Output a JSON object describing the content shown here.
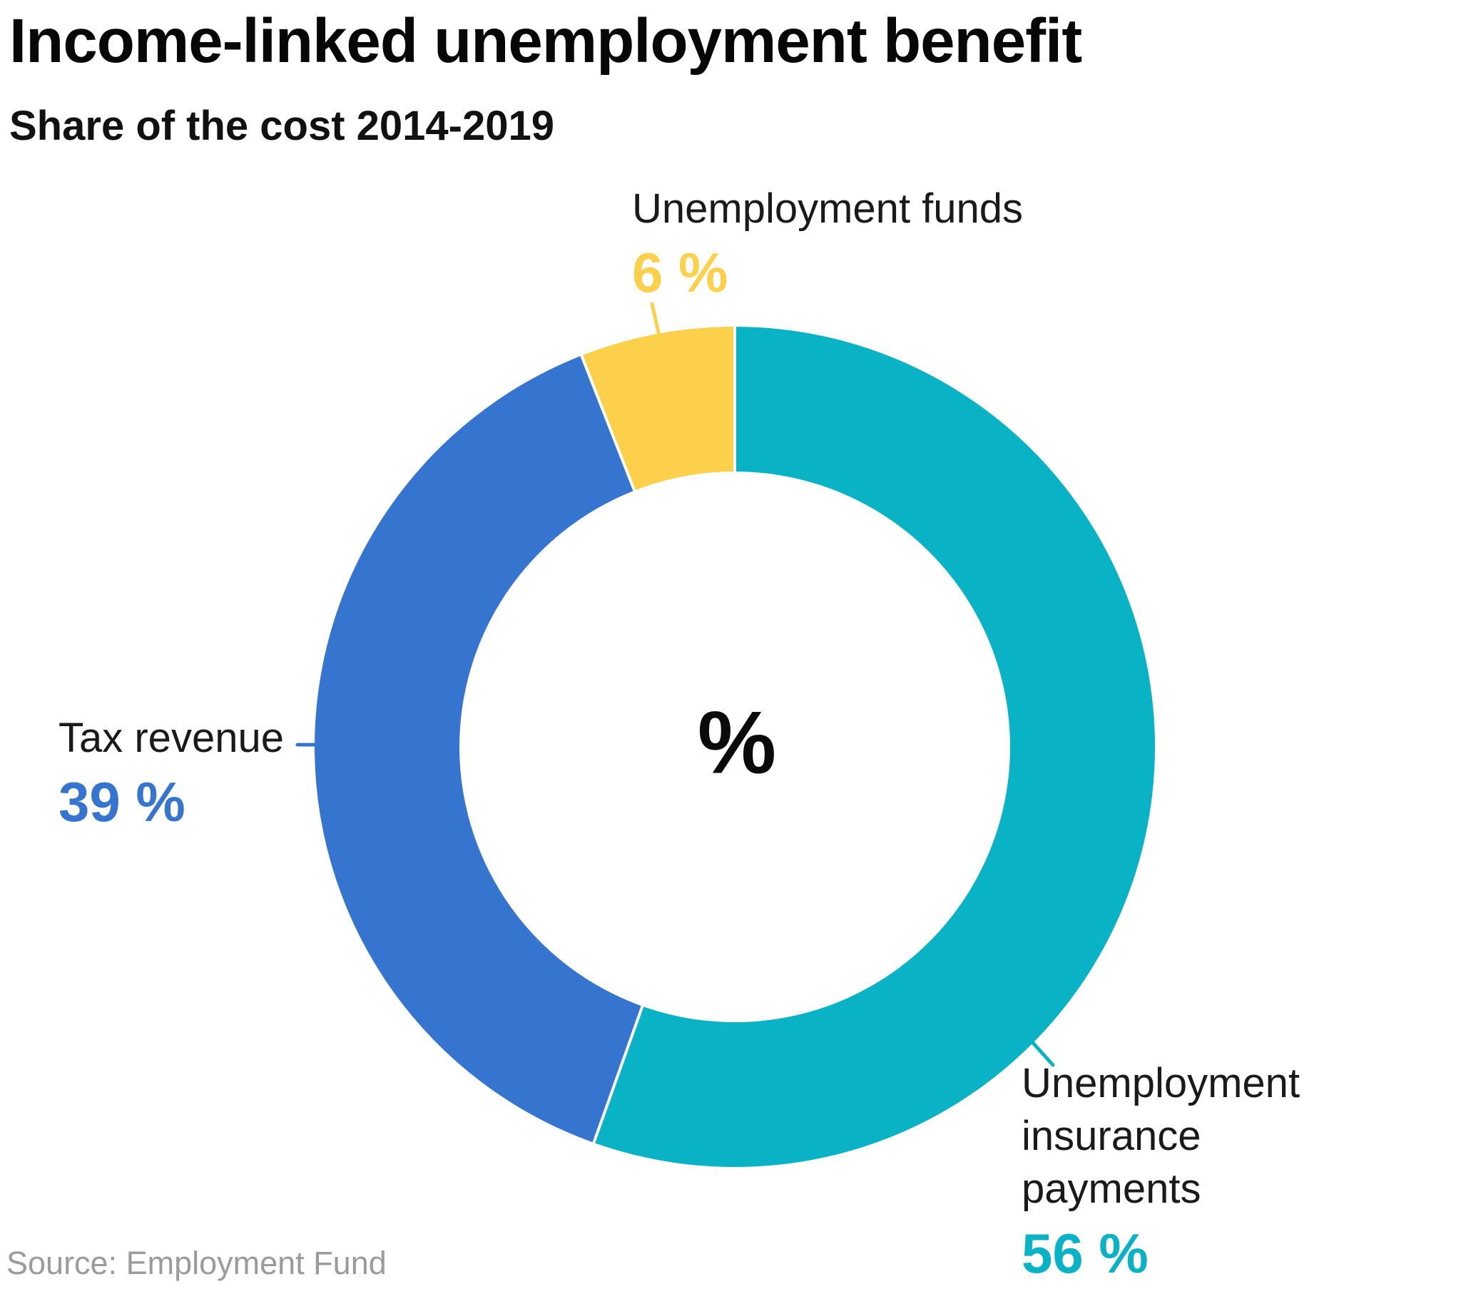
{
  "header": {
    "title": "Income-linked unemployment benefit",
    "subtitle": "Share of the cost 2014-2019"
  },
  "footer": {
    "source": "Source: Employment Fund"
  },
  "chart_data": {
    "type": "pie",
    "subtype": "donut",
    "title": "Income-linked unemployment benefit",
    "subtitle": "Share of the cost 2014-2019",
    "center_label": "%",
    "source": "Source: Employment Fund",
    "unit": "%",
    "start_angle_deg": 0,
    "direction": "clockwise",
    "inner_radius_ratio": 0.655,
    "legend_position": "outside-callouts",
    "slices": [
      {
        "label": "Unemployment insurance payments",
        "value": 56,
        "display": "56 %",
        "color": "#09b2c4"
      },
      {
        "label": "Tax revenue",
        "value": 39,
        "display": "39 %",
        "color": "#3575d0"
      },
      {
        "label": "Unemployment funds",
        "value": 6,
        "display": "6 %",
        "color": "#fcd04a"
      }
    ]
  }
}
